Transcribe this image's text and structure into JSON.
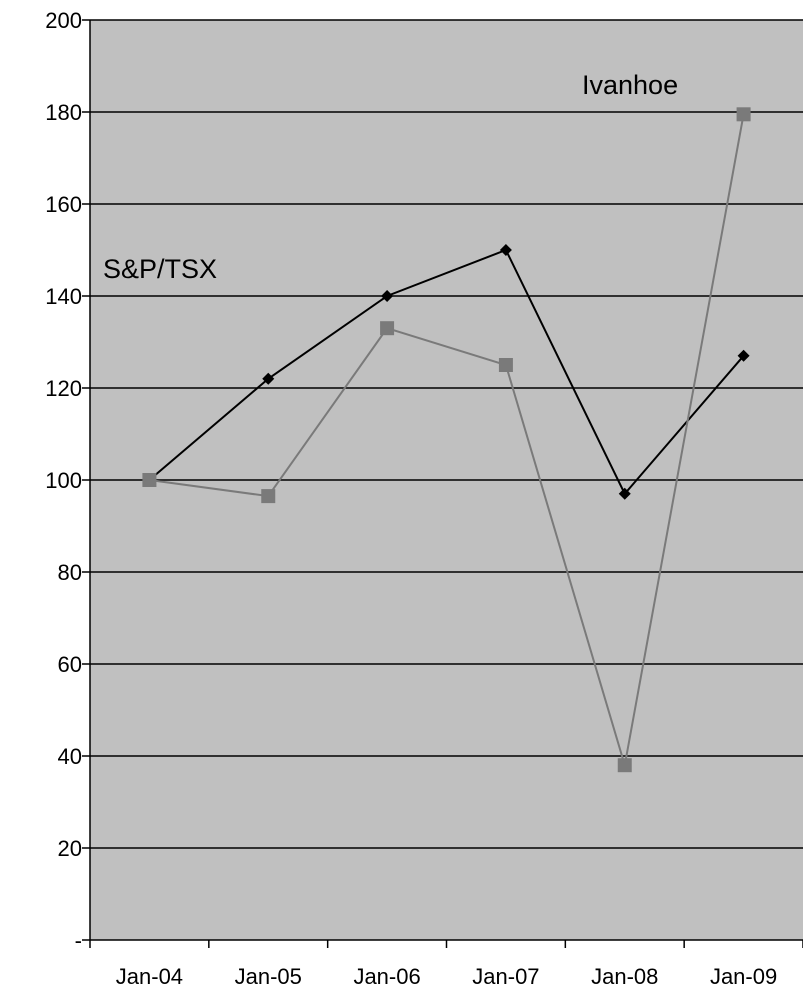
{
  "chart_data": {
    "type": "line",
    "title": "",
    "xlabel": "",
    "ylabel": "",
    "categories": [
      "Jan-04",
      "Jan-05",
      "Jan-06",
      "Jan-07",
      "Jan-08",
      "Jan-09"
    ],
    "ylim": [
      0,
      200
    ],
    "yticks": [
      0,
      20,
      40,
      60,
      80,
      100,
      120,
      140,
      160,
      180,
      200
    ],
    "ytick_labels": [
      "-",
      "20",
      "40",
      "60",
      "80",
      "100",
      "120",
      "140",
      "160",
      "180",
      "200"
    ],
    "grid": true,
    "legend": "none",
    "series": [
      {
        "name": "S&P/TSX",
        "color": "#000000",
        "marker": "diamond",
        "x": [
          "2004-02",
          "2005-02",
          "2006-02",
          "2007-02",
          "2008-02",
          "2009-02"
        ],
        "values": [
          100,
          122,
          140,
          150,
          97,
          127
        ]
      },
      {
        "name": "Ivanhoe",
        "color": "#7a7a7a",
        "marker": "square",
        "x": [
          "2004-02",
          "2005-02",
          "2006-02",
          "2007-02",
          "2008-02",
          "2009-02"
        ],
        "values": [
          100,
          96.5,
          133,
          125,
          38,
          179.5
        ]
      }
    ]
  }
}
